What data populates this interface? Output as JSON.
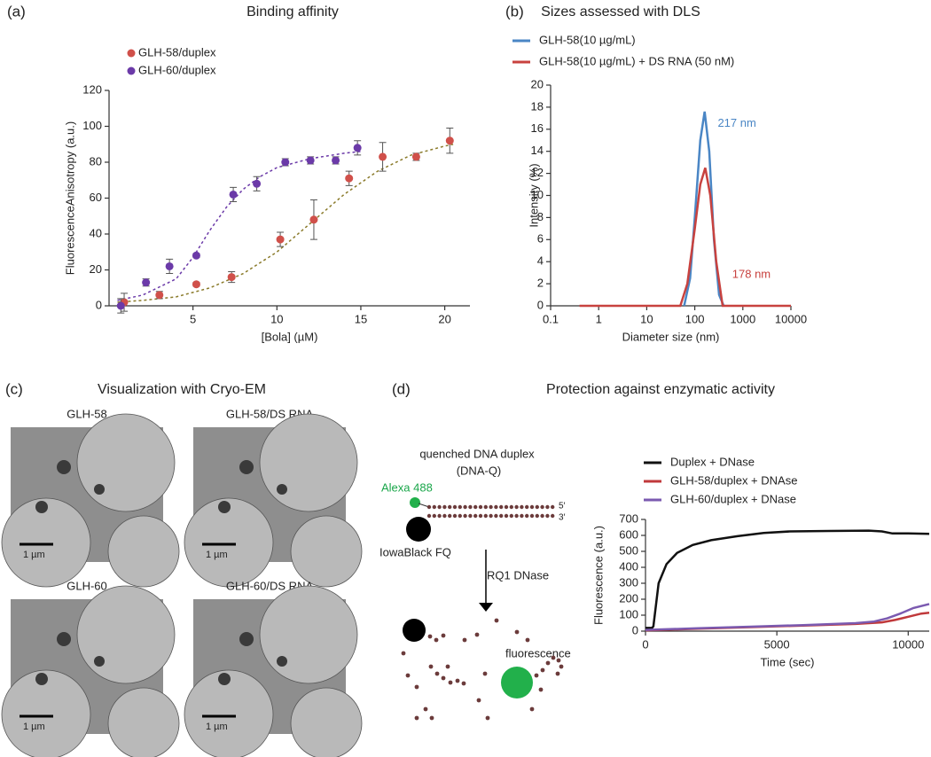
{
  "panel_labels": [
    "(a)",
    "(b)",
    "(c)",
    "(d)"
  ],
  "cryo_em": {
    "title": "Visualization with Cryo-EM",
    "images": [
      {
        "label": "GLH-58",
        "scale_bar": "1 µm"
      },
      {
        "label": "GLH-58/DS RNA",
        "scale_bar": "1 µm"
      },
      {
        "label": "GLH-60",
        "scale_bar": "1 µm"
      },
      {
        "label": "GLH-60/DS RNA",
        "scale_bar": "1 µm"
      }
    ]
  },
  "enzymatic": {
    "title": "Protection against enzymatic activity",
    "diagram": {
      "duplex_label": "quenched DNA duplex",
      "duplex_abbr": "(DNA-Q)",
      "fluorophore": "Alexa 488",
      "end_5": "5′",
      "end_3": "3′",
      "quencher": "IowaBlack FQ",
      "enzyme": "RQ1 DNase",
      "result": "fluorescence"
    }
  },
  "chart_data": [
    {
      "type": "scatter",
      "title": "Binding affinity",
      "x_label": "[Bola] (µM)",
      "y_label": "FluorescenceAnisotropy (a.u.)",
      "xlim": [
        0,
        21.5
      ],
      "ylim": [
        0,
        120
      ],
      "xticks": [
        5,
        10,
        15,
        20
      ],
      "yticks": [
        0,
        20,
        40,
        60,
        80,
        100,
        120
      ],
      "series": [
        {
          "name": "GLH-58/duplex",
          "color": "#d0504a",
          "x": [
            0.9,
            3.0,
            5.2,
            7.3,
            10.2,
            12.2,
            14.3,
            16.3,
            18.3,
            20.3
          ],
          "values": [
            2,
            6,
            12,
            16,
            37,
            48,
            71,
            83,
            83,
            92
          ],
          "errors": [
            5,
            2,
            1,
            3,
            4,
            11,
            4,
            8,
            2,
            7
          ]
        },
        {
          "name": "GLH-60/duplex",
          "color": "#6b3aa8",
          "x": [
            0.7,
            2.2,
            3.6,
            5.2,
            7.4,
            8.8,
            10.5,
            12.0,
            13.5,
            14.8
          ],
          "values": [
            0,
            13,
            22,
            28,
            62,
            68,
            80,
            81,
            81,
            88
          ],
          "errors": [
            4,
            2,
            4,
            1,
            4,
            4,
            2,
            2,
            2,
            4
          ]
        }
      ],
      "fits": [
        {
          "color": "#8a7a2a",
          "x": [
            0.5,
            2,
            4,
            6,
            8,
            10,
            12,
            14,
            16,
            18,
            20,
            20.5
          ],
          "values": [
            2,
            3,
            5,
            10,
            18,
            30,
            46,
            62,
            75,
            84,
            89,
            90
          ]
        },
        {
          "color": "#6b3aa8",
          "x": [
            0.5,
            2,
            4,
            5,
            6,
            7,
            8,
            9,
            10,
            12,
            14,
            15
          ],
          "values": [
            3,
            6,
            15,
            27,
            42,
            55,
            65,
            72,
            77,
            82,
            85,
            86
          ]
        }
      ]
    },
    {
      "type": "line",
      "title": "Sizes assessed with DLS",
      "x_label": "Diameter size (nm)",
      "y_label": "Intensity (%)",
      "xscale": "log",
      "xlim": [
        0.1,
        10000
      ],
      "ylim": [
        0,
        20
      ],
      "xticks": [
        0.1,
        1,
        10,
        100,
        1000,
        10000
      ],
      "yticks": [
        0,
        2,
        4,
        6,
        8,
        10,
        12,
        14,
        16,
        18,
        20
      ],
      "series": [
        {
          "name": "GLH-58(10 µg/mL)",
          "color": "#4a86c5",
          "x": [
            60,
            80,
            100,
            130,
            160,
            200,
            250,
            320,
            400
          ],
          "values": [
            0,
            2.5,
            8,
            15,
            17.6,
            14,
            6,
            1,
            0
          ]
        },
        {
          "name": "GLH-58(10 µg/mL) + DS RNA (50 nM)",
          "color": "#c8423f",
          "x": [
            0.4,
            50,
            70,
            100,
            130,
            165,
            210,
            280,
            380,
            10000
          ],
          "values": [
            0,
            0,
            2,
            7,
            11,
            12.5,
            10,
            4,
            0,
            0
          ]
        }
      ],
      "annotations": [
        {
          "text": "217 nm",
          "x": 300,
          "y": 16.5,
          "color": "#4a86c5"
        },
        {
          "text": "178 nm",
          "x": 600,
          "y": 2.8,
          "color": "#c8423f"
        }
      ]
    },
    {
      "type": "line",
      "x_label": "Time (sec)",
      "y_label": "Fluorescence (a.u.)",
      "xlim": [
        0,
        10800
      ],
      "ylim": [
        0,
        700
      ],
      "xticks": [
        0,
        5000,
        10000
      ],
      "yticks": [
        0,
        100,
        200,
        300,
        400,
        500,
        600,
        700
      ],
      "series": [
        {
          "name": "Duplex + DNase",
          "color": "#111111",
          "x": [
            0,
            250,
            300,
            500,
            800,
            1200,
            1800,
            2500,
            3500,
            4500,
            5500,
            7000,
            8500,
            9000,
            9400,
            10000,
            10800
          ],
          "values": [
            20,
            20,
            30,
            300,
            420,
            490,
            540,
            570,
            595,
            615,
            625,
            628,
            630,
            625,
            612,
            612,
            610
          ]
        },
        {
          "name": "GLH-58/duplex + DNAse",
          "color": "#c0393b",
          "x": [
            0,
            2000,
            4000,
            6000,
            8000,
            9000,
            9500,
            10000,
            10500,
            10800
          ],
          "values": [
            5,
            15,
            25,
            35,
            45,
            55,
            70,
            90,
            110,
            115
          ]
        },
        {
          "name": "GLH-60/duplex + DNase",
          "color": "#7b5ab0",
          "x": [
            0,
            2000,
            4000,
            6000,
            8000,
            8700,
            9200,
            9700,
            10200,
            10800
          ],
          "values": [
            8,
            18,
            28,
            38,
            50,
            60,
            80,
            110,
            145,
            170
          ]
        }
      ]
    }
  ]
}
